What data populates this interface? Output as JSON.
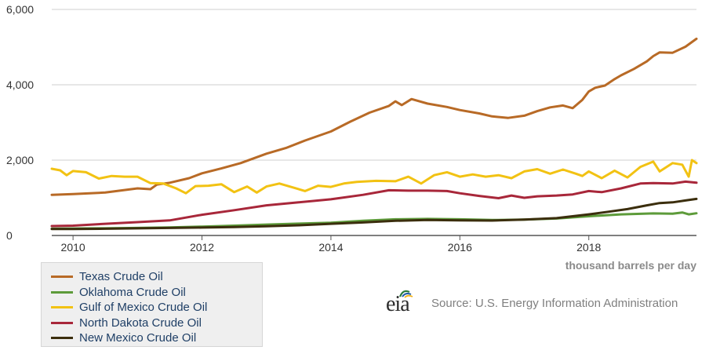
{
  "chart_data": {
    "type": "line",
    "title": "",
    "xlabel": "",
    "ylabel": "",
    "unit_label": "thousand barrels per day",
    "xlim": [
      2009.67,
      2019.67
    ],
    "ylim": [
      0,
      6000
    ],
    "y_ticks": [
      0,
      2000,
      4000,
      6000
    ],
    "y_tick_labels": [
      "0",
      "2,000",
      "4,000",
      "6,000"
    ],
    "x_ticks": [
      2010,
      2012,
      2014,
      2016,
      2018
    ],
    "x_tick_labels": [
      "2010",
      "2012",
      "2014",
      "2016",
      "2018"
    ],
    "grid": "horizontal",
    "legend_position": "bottom-left",
    "series": [
      {
        "name": "Texas Crude Oil",
        "color": "#b86a26",
        "points": [
          [
            2009.67,
            1080
          ],
          [
            2010.0,
            1100
          ],
          [
            2010.5,
            1140
          ],
          [
            2011.0,
            1250
          ],
          [
            2011.2,
            1230
          ],
          [
            2011.3,
            1350
          ],
          [
            2011.5,
            1400
          ],
          [
            2011.8,
            1520
          ],
          [
            2012.0,
            1650
          ],
          [
            2012.3,
            1780
          ],
          [
            2012.6,
            1920
          ],
          [
            2013.0,
            2170
          ],
          [
            2013.3,
            2320
          ],
          [
            2013.6,
            2520
          ],
          [
            2014.0,
            2760
          ],
          [
            2014.3,
            3020
          ],
          [
            2014.6,
            3260
          ],
          [
            2014.9,
            3440
          ],
          [
            2015.0,
            3560
          ],
          [
            2015.1,
            3460
          ],
          [
            2015.25,
            3620
          ],
          [
            2015.5,
            3500
          ],
          [
            2015.8,
            3410
          ],
          [
            2016.0,
            3330
          ],
          [
            2016.3,
            3240
          ],
          [
            2016.5,
            3160
          ],
          [
            2016.75,
            3120
          ],
          [
            2017.0,
            3180
          ],
          [
            2017.2,
            3300
          ],
          [
            2017.4,
            3400
          ],
          [
            2017.6,
            3450
          ],
          [
            2017.75,
            3380
          ],
          [
            2017.9,
            3600
          ],
          [
            2018.0,
            3820
          ],
          [
            2018.1,
            3920
          ],
          [
            2018.25,
            3980
          ],
          [
            2018.4,
            4150
          ],
          [
            2018.5,
            4250
          ],
          [
            2018.7,
            4420
          ],
          [
            2018.9,
            4620
          ],
          [
            2019.0,
            4760
          ],
          [
            2019.1,
            4860
          ],
          [
            2019.3,
            4850
          ],
          [
            2019.5,
            5010
          ],
          [
            2019.67,
            5220
          ]
        ]
      },
      {
        "name": "Oklahoma Crude Oil",
        "color": "#5d9b3a",
        "points": [
          [
            2009.67,
            180
          ],
          [
            2010.0,
            185
          ],
          [
            2010.5,
            190
          ],
          [
            2011.0,
            200
          ],
          [
            2011.5,
            215
          ],
          [
            2012.0,
            235
          ],
          [
            2012.5,
            260
          ],
          [
            2013.0,
            290
          ],
          [
            2013.5,
            315
          ],
          [
            2014.0,
            340
          ],
          [
            2014.5,
            390
          ],
          [
            2015.0,
            430
          ],
          [
            2015.5,
            440
          ],
          [
            2016.0,
            430
          ],
          [
            2016.5,
            410
          ],
          [
            2017.0,
            420
          ],
          [
            2017.5,
            450
          ],
          [
            2018.0,
            510
          ],
          [
            2018.5,
            560
          ],
          [
            2019.0,
            585
          ],
          [
            2019.3,
            580
          ],
          [
            2019.45,
            610
          ],
          [
            2019.55,
            560
          ],
          [
            2019.67,
            590
          ]
        ]
      },
      {
        "name": "Gulf of Mexico Crude Oil",
        "color": "#f2c213",
        "points": [
          [
            2009.67,
            1770
          ],
          [
            2009.8,
            1730
          ],
          [
            2009.9,
            1600
          ],
          [
            2010.0,
            1710
          ],
          [
            2010.2,
            1680
          ],
          [
            2010.4,
            1510
          ],
          [
            2010.6,
            1580
          ],
          [
            2010.8,
            1560
          ],
          [
            2011.0,
            1560
          ],
          [
            2011.2,
            1390
          ],
          [
            2011.4,
            1380
          ],
          [
            2011.6,
            1250
          ],
          [
            2011.75,
            1120
          ],
          [
            2011.9,
            1310
          ],
          [
            2012.1,
            1320
          ],
          [
            2012.3,
            1360
          ],
          [
            2012.5,
            1150
          ],
          [
            2012.7,
            1300
          ],
          [
            2012.85,
            1140
          ],
          [
            2013.0,
            1300
          ],
          [
            2013.2,
            1380
          ],
          [
            2013.4,
            1280
          ],
          [
            2013.6,
            1180
          ],
          [
            2013.8,
            1320
          ],
          [
            2014.0,
            1290
          ],
          [
            2014.2,
            1380
          ],
          [
            2014.4,
            1420
          ],
          [
            2014.7,
            1450
          ],
          [
            2015.0,
            1440
          ],
          [
            2015.2,
            1560
          ],
          [
            2015.4,
            1380
          ],
          [
            2015.6,
            1600
          ],
          [
            2015.8,
            1680
          ],
          [
            2016.0,
            1560
          ],
          [
            2016.2,
            1620
          ],
          [
            2016.4,
            1560
          ],
          [
            2016.6,
            1600
          ],
          [
            2016.8,
            1520
          ],
          [
            2017.0,
            1700
          ],
          [
            2017.2,
            1760
          ],
          [
            2017.4,
            1640
          ],
          [
            2017.6,
            1750
          ],
          [
            2017.8,
            1640
          ],
          [
            2017.9,
            1580
          ],
          [
            2018.0,
            1700
          ],
          [
            2018.2,
            1520
          ],
          [
            2018.4,
            1720
          ],
          [
            2018.6,
            1540
          ],
          [
            2018.8,
            1820
          ],
          [
            2019.0,
            1960
          ],
          [
            2019.1,
            1700
          ],
          [
            2019.3,
            1920
          ],
          [
            2019.45,
            1880
          ],
          [
            2019.55,
            1560
          ],
          [
            2019.6,
            2000
          ],
          [
            2019.67,
            1920
          ]
        ]
      },
      {
        "name": "North Dakota Crude Oil",
        "color": "#a8273a",
        "points": [
          [
            2009.67,
            250
          ],
          [
            2010.0,
            260
          ],
          [
            2010.5,
            310
          ],
          [
            2011.0,
            355
          ],
          [
            2011.5,
            400
          ],
          [
            2012.0,
            550
          ],
          [
            2012.5,
            670
          ],
          [
            2013.0,
            800
          ],
          [
            2013.5,
            880
          ],
          [
            2014.0,
            960
          ],
          [
            2014.5,
            1080
          ],
          [
            2014.9,
            1200
          ],
          [
            2015.2,
            1190
          ],
          [
            2015.5,
            1190
          ],
          [
            2015.8,
            1180
          ],
          [
            2016.0,
            1120
          ],
          [
            2016.3,
            1050
          ],
          [
            2016.6,
            990
          ],
          [
            2016.8,
            1060
          ],
          [
            2017.0,
            1000
          ],
          [
            2017.2,
            1040
          ],
          [
            2017.5,
            1060
          ],
          [
            2017.75,
            1090
          ],
          [
            2018.0,
            1180
          ],
          [
            2018.2,
            1150
          ],
          [
            2018.5,
            1250
          ],
          [
            2018.8,
            1380
          ],
          [
            2019.0,
            1390
          ],
          [
            2019.3,
            1380
          ],
          [
            2019.5,
            1430
          ],
          [
            2019.67,
            1400
          ]
        ]
      },
      {
        "name": "New Mexico Crude Oil",
        "color": "#3b2e0d",
        "points": [
          [
            2009.67,
            170
          ],
          [
            2010.0,
            170
          ],
          [
            2010.5,
            180
          ],
          [
            2011.0,
            190
          ],
          [
            2011.5,
            200
          ],
          [
            2012.0,
            210
          ],
          [
            2012.5,
            225
          ],
          [
            2013.0,
            245
          ],
          [
            2013.5,
            270
          ],
          [
            2014.0,
            310
          ],
          [
            2014.5,
            345
          ],
          [
            2015.0,
            390
          ],
          [
            2015.5,
            410
          ],
          [
            2016.0,
            400
          ],
          [
            2016.5,
            395
          ],
          [
            2017.0,
            420
          ],
          [
            2017.5,
            460
          ],
          [
            2018.0,
            560
          ],
          [
            2018.3,
            630
          ],
          [
            2018.6,
            700
          ],
          [
            2018.9,
            800
          ],
          [
            2019.1,
            860
          ],
          [
            2019.3,
            880
          ],
          [
            2019.5,
            930
          ],
          [
            2019.67,
            970
          ]
        ]
      }
    ]
  },
  "source_text": "Source: U.S. Energy Information Administration",
  "logo_text": "eia"
}
